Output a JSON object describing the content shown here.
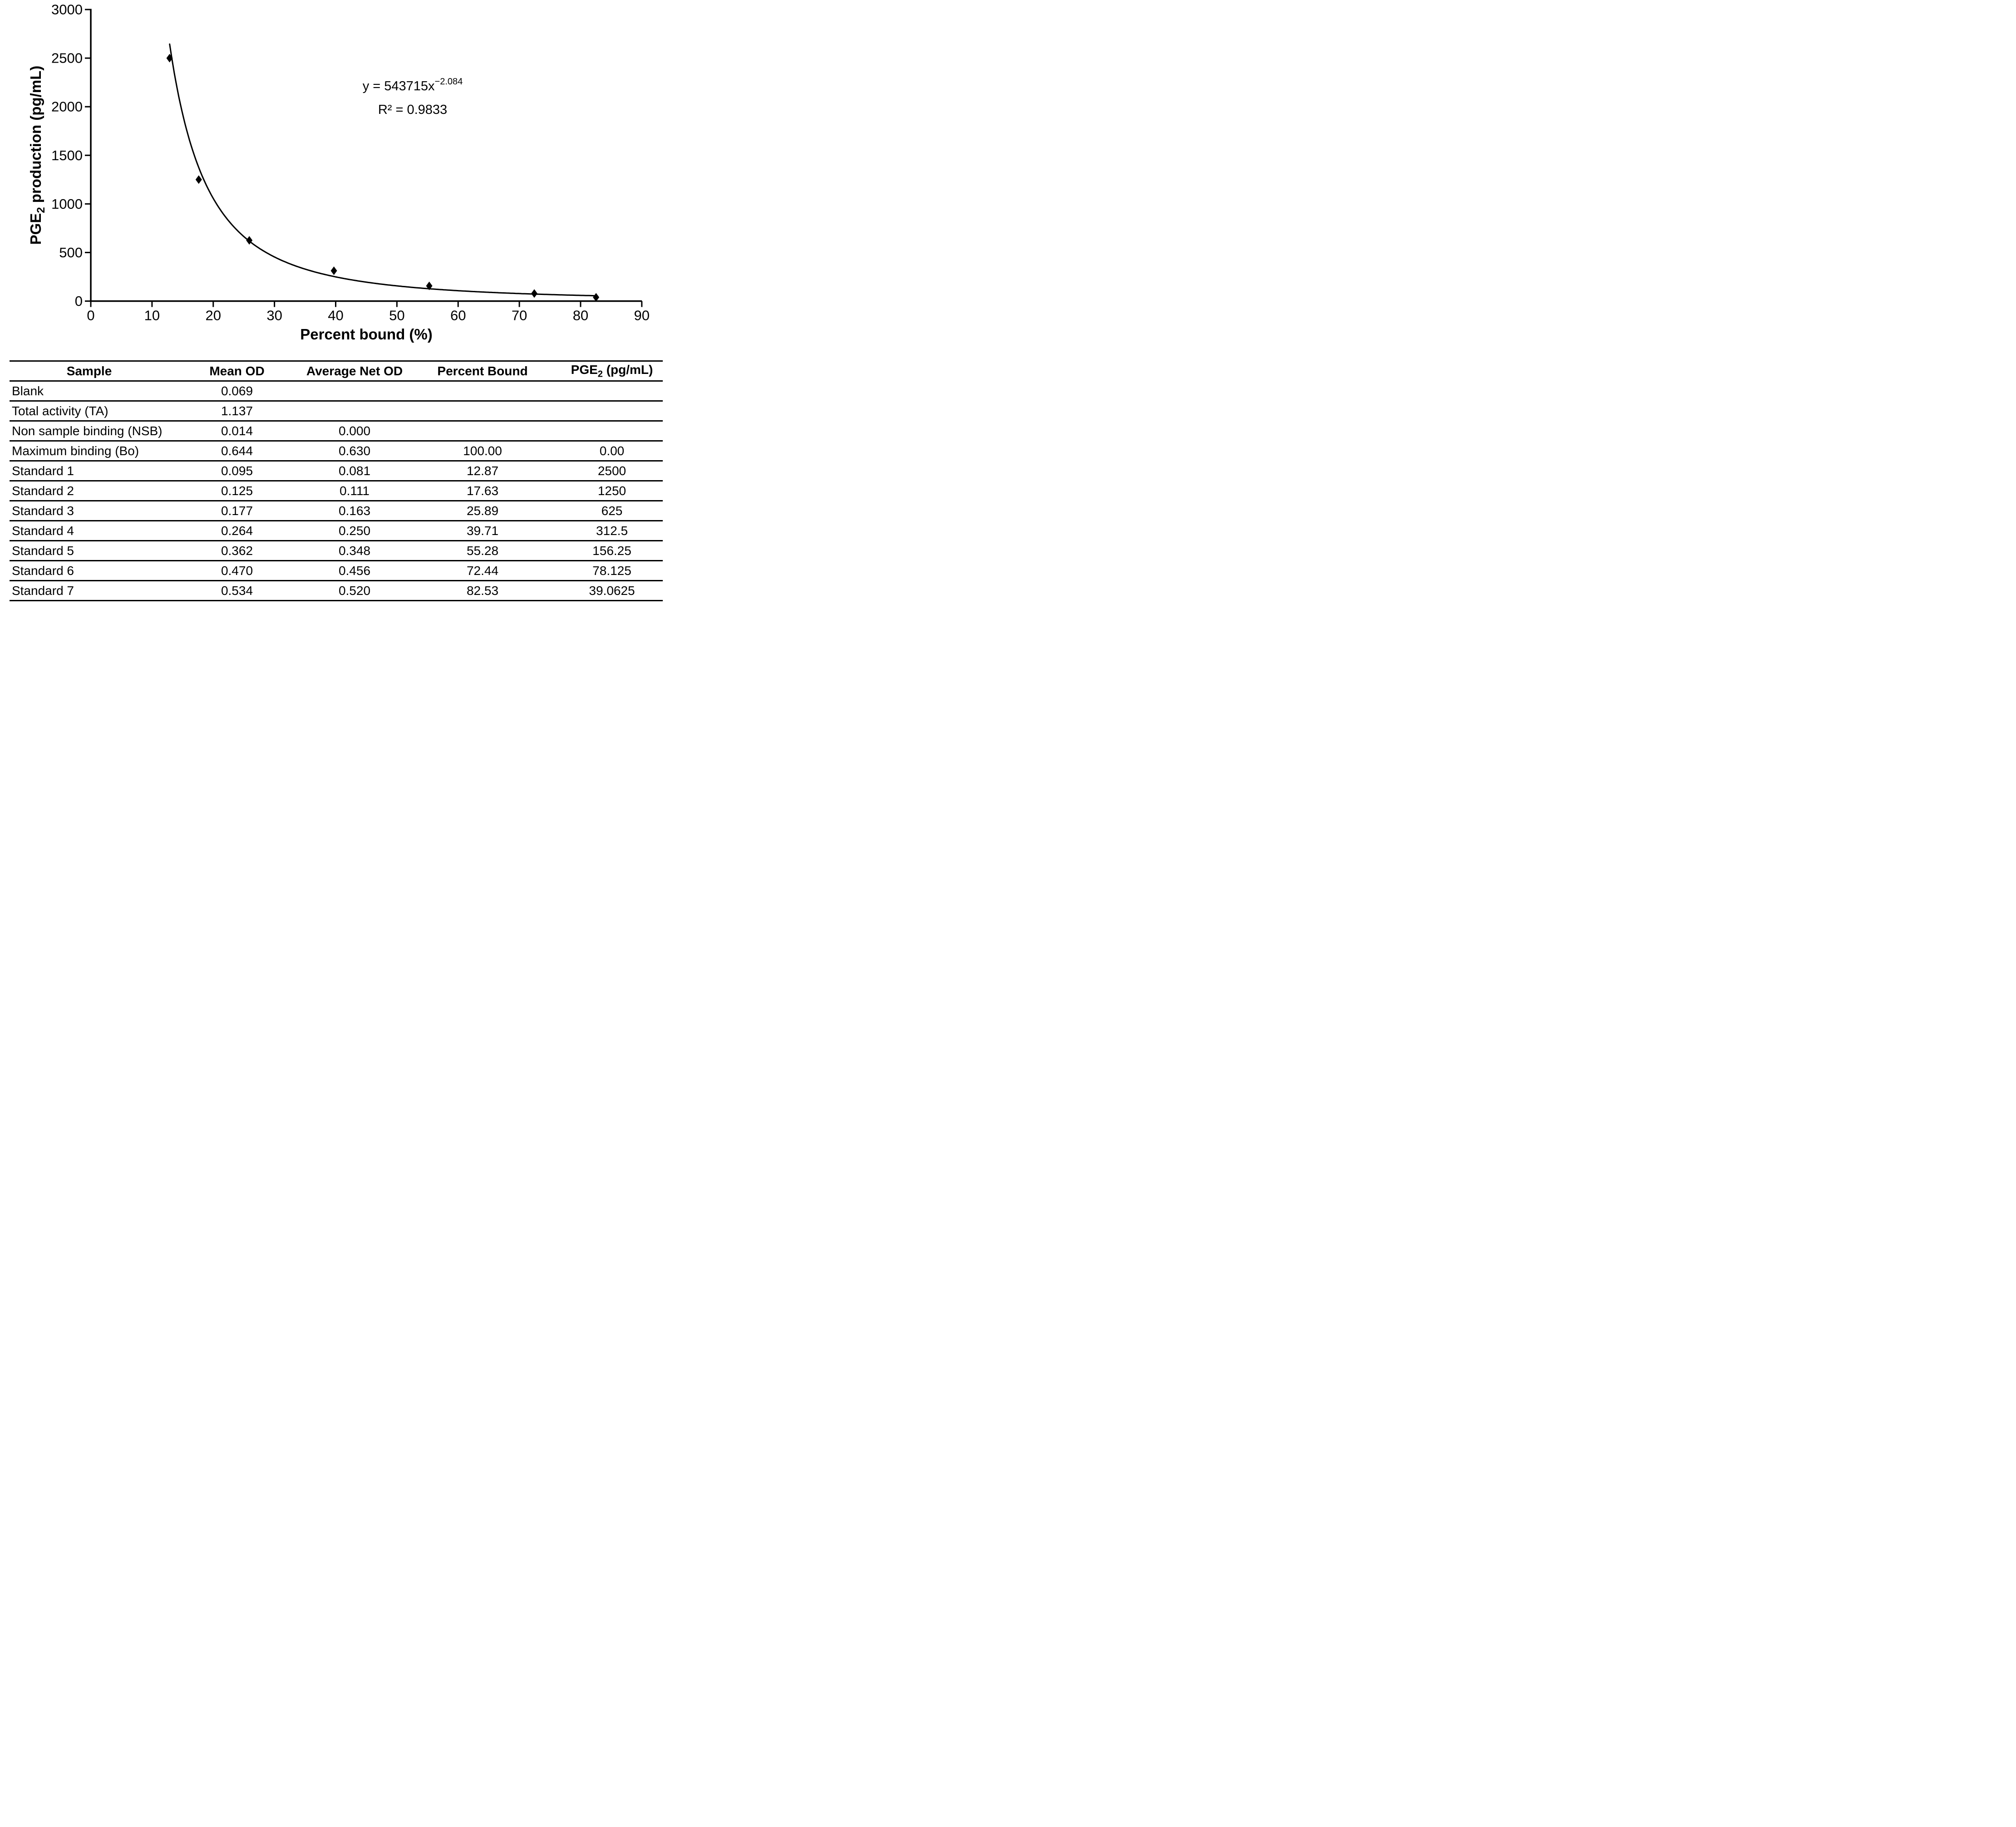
{
  "chart_data": {
    "type": "scatter",
    "title": "",
    "xlabel": "Percent bound (%)",
    "ylabel": "PGE2 production (pg/mL)",
    "ylabel_parts": {
      "pre": "PGE",
      "sub": "2",
      "post": " production (pg/mL)"
    },
    "xlim": [
      0,
      90
    ],
    "ylim": [
      0,
      3000
    ],
    "x_ticks": [
      0,
      10,
      20,
      30,
      40,
      50,
      60,
      70,
      80,
      90
    ],
    "y_ticks": [
      0,
      500,
      1000,
      1500,
      2000,
      2500,
      3000
    ],
    "grid": false,
    "legend": false,
    "marker": "diamond",
    "marker_color": "#000000",
    "line_color": "#000000",
    "points": {
      "x": [
        12.87,
        17.63,
        25.89,
        39.71,
        55.28,
        72.44,
        82.53
      ],
      "y": [
        2500,
        1250,
        625,
        312.5,
        156.25,
        78.125,
        39.0625
      ]
    },
    "trendline": {
      "type": "power",
      "coefficient": 543715,
      "exponent": -2.084,
      "r_squared": 0.9833,
      "x_start": 12.88,
      "x_end": 82.7
    },
    "annotation": {
      "equation_base": "y = 543715x",
      "equation_exponent": "−2.084",
      "r_squared": "R² = 0.9833"
    }
  },
  "table": {
    "headers": [
      "Sample",
      "Mean OD",
      "Average Net OD",
      "Percent Bound"
    ],
    "header_pge": {
      "pre": "PGE",
      "sub": "2",
      "post": " (pg/mL)"
    },
    "rows": [
      [
        "Blank",
        "0.069",
        "",
        "",
        ""
      ],
      [
        "Total activity (TA)",
        "1.137",
        "",
        "",
        ""
      ],
      [
        "Non sample binding (NSB)",
        "0.014",
        "0.000",
        "",
        ""
      ],
      [
        "Maximum binding (Bo)",
        "0.644",
        "0.630",
        "100.00",
        "0.00"
      ],
      [
        "Standard 1",
        "0.095",
        "0.081",
        "12.87",
        "2500"
      ],
      [
        "Standard 2",
        "0.125",
        "0.111",
        "17.63",
        "1250"
      ],
      [
        "Standard 3",
        "0.177",
        "0.163",
        "25.89",
        "625"
      ],
      [
        "Standard 4",
        "0.264",
        "0.250",
        "39.71",
        "312.5"
      ],
      [
        "Standard 5",
        "0.362",
        "0.348",
        "55.28",
        "156.25"
      ],
      [
        "Standard 6",
        "0.470",
        "0.456",
        "72.44",
        "78.125"
      ],
      [
        "Standard 7",
        "0.534",
        "0.520",
        "82.53",
        "39.0625"
      ]
    ]
  }
}
